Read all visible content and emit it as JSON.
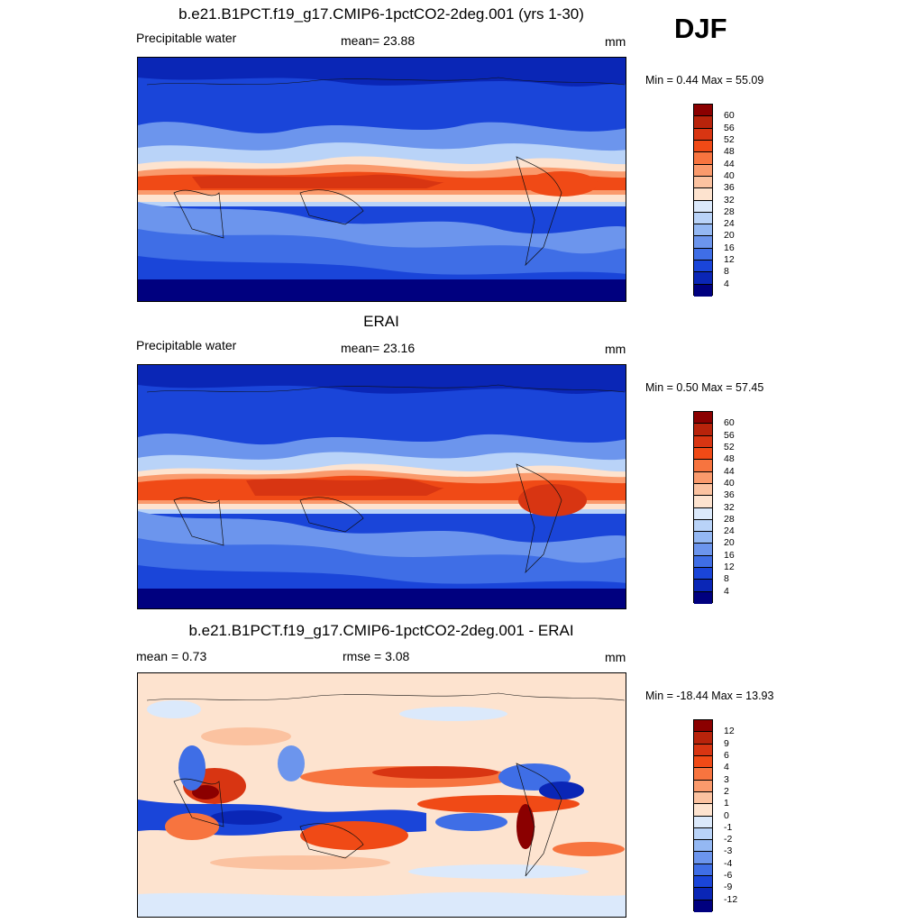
{
  "season": "DJF",
  "panels": [
    {
      "title": "b.e21.B1PCT.f19_g17.CMIP6-1pctCO2-2deg.001 (yrs 1-30)",
      "left_label": "Precipitable water",
      "center_label": "mean=  23.88",
      "units": "mm",
      "minmax": "Min =   0.44 Max =  55.09",
      "colorbar": {
        "levels": [
          "60",
          "56",
          "52",
          "48",
          "44",
          "40",
          "36",
          "32",
          "28",
          "24",
          "20",
          "16",
          "12",
          "8",
          "4"
        ],
        "colors": [
          "#8b0000",
          "#b8230b",
          "#d83512",
          "#f04a16",
          "#f7743f",
          "#fa9a6c",
          "#fbc2a0",
          "#fde3cf",
          "#dbe9fb",
          "#b9d3f8",
          "#94b8f3",
          "#6c95ed",
          "#3f6ee6",
          "#1a45d9",
          "#0a26b6",
          "#00007f"
        ]
      },
      "map_palette": {
        "cold": "#00007f",
        "c2": "#0a26b6",
        "c3": "#1a45d9",
        "c4": "#6c95ed",
        "c5": "#b9d3f8",
        "c6": "#fde3cf",
        "c7": "#fa9a6c",
        "c8": "#f04a16",
        "hot": "#d83512"
      }
    },
    {
      "title": "ERAI",
      "left_label": "Precipitable water",
      "center_label": "mean=  23.16",
      "units": "mm",
      "minmax": "Min =   0.50 Max =  57.45",
      "colorbar": {
        "levels": [
          "60",
          "56",
          "52",
          "48",
          "44",
          "40",
          "36",
          "32",
          "28",
          "24",
          "20",
          "16",
          "12",
          "8",
          "4"
        ],
        "colors": [
          "#8b0000",
          "#b8230b",
          "#d83512",
          "#f04a16",
          "#f7743f",
          "#fa9a6c",
          "#fbc2a0",
          "#fde3cf",
          "#dbe9fb",
          "#b9d3f8",
          "#94b8f3",
          "#6c95ed",
          "#3f6ee6",
          "#1a45d9",
          "#0a26b6",
          "#00007f"
        ]
      }
    },
    {
      "title": "b.e21.B1PCT.f19_g17.CMIP6-1pctCO2-2deg.001 - ERAI",
      "left_label": "mean =   0.73",
      "center_label": "rmse =   3.08",
      "units": "mm",
      "minmax": "Min = -18.44 Max =  13.93",
      "colorbar": {
        "levels": [
          "12",
          "9",
          "6",
          "4",
          "3",
          "2",
          "1",
          "0",
          "-1",
          "-2",
          "-3",
          "-4",
          "-6",
          "-9",
          "-12"
        ],
        "colors": [
          "#8b0000",
          "#b8230b",
          "#d83512",
          "#f04a16",
          "#f7743f",
          "#fa9a6c",
          "#fbc2a0",
          "#fde3cf",
          "#dbe9fb",
          "#b9d3f8",
          "#94b8f3",
          "#6c95ed",
          "#3f6ee6",
          "#1a45d9",
          "#0a26b6",
          "#00007f"
        ]
      }
    }
  ]
}
